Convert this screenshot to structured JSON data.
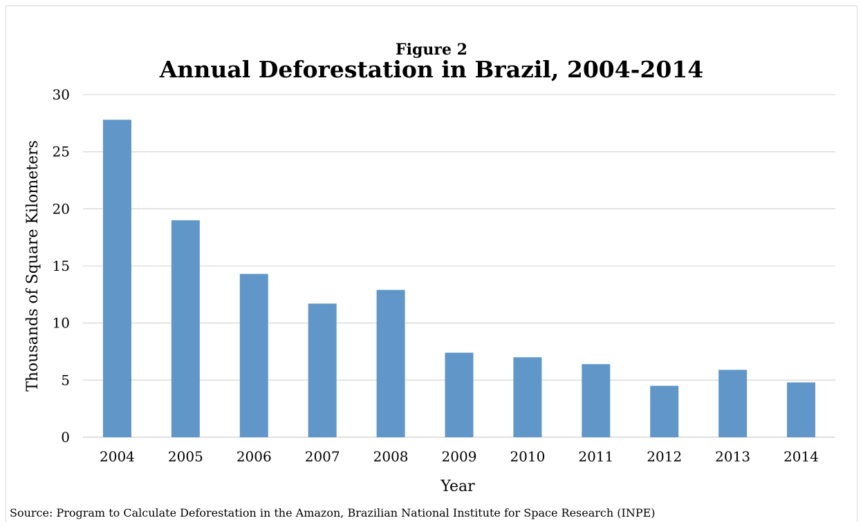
{
  "figure_label": "Figure 2",
  "source_note": "Source: Program to Calculate Deforestation in the Amazon, Brazilian National Institute for Space Research (INPE)",
  "colors": {
    "bar": "#6096c8",
    "grid": "#d9d9d9",
    "text": "#000000"
  },
  "chart_data": {
    "type": "bar",
    "title": "Annual Deforestation in Brazil, 2004-2014",
    "xlabel": "Year",
    "ylabel": "Thousands of Square Kilometers",
    "categories": [
      "2004",
      "2005",
      "2006",
      "2007",
      "2008",
      "2009",
      "2010",
      "2011",
      "2012",
      "2013",
      "2014"
    ],
    "values": [
      27.8,
      19.0,
      14.3,
      11.7,
      12.9,
      7.4,
      7.0,
      6.4,
      4.5,
      5.9,
      4.8
    ],
    "ylim": [
      0,
      30
    ],
    "yticks": [
      0,
      5,
      10,
      15,
      20,
      25,
      30
    ],
    "grid": true,
    "legend": "none"
  }
}
